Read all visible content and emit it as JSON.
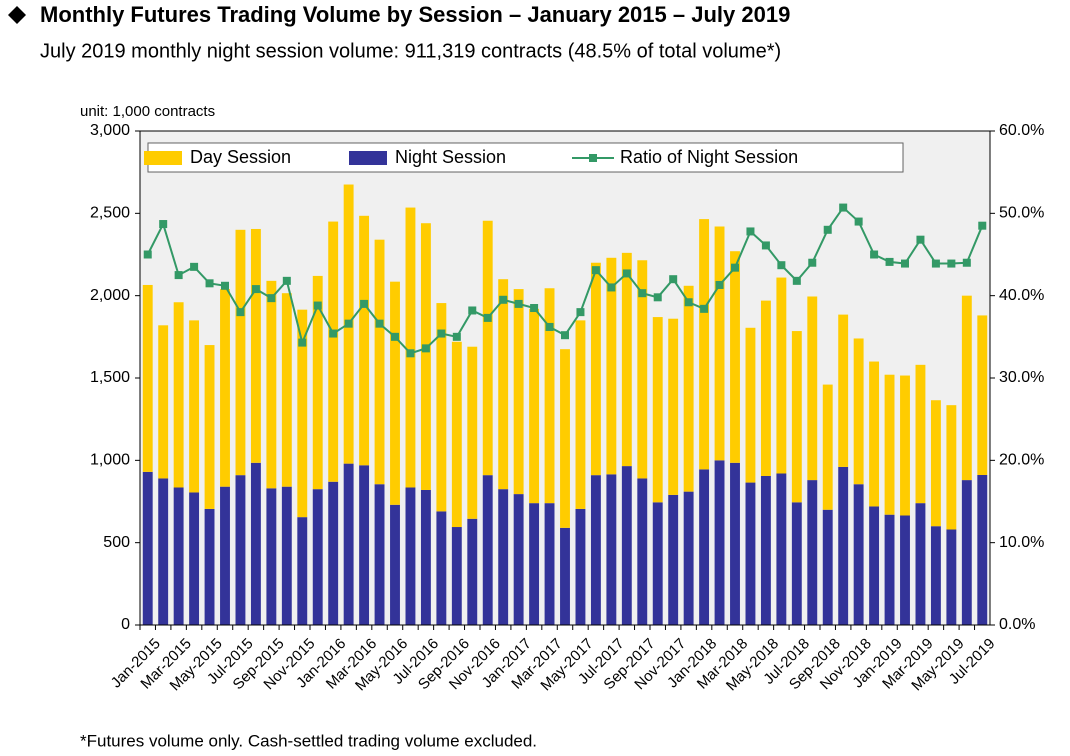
{
  "chart_data": {
    "type": "bar",
    "stacked": true,
    "title": "Monthly Futures Trading Volume by Session – January 2015 – July 2019",
    "subtitle": "July 2019 monthly night session volume: 911,319 contracts (48.5% of total volume*)",
    "y_unit_label": "unit: 1,000 contracts",
    "footnote": "*Futures volume only. Cash-settled trading volume excluded.",
    "categories": [
      "Jan-2015",
      null,
      "Mar-2015",
      null,
      "May-2015",
      null,
      "Jul-2015",
      null,
      "Sep-2015",
      null,
      "Nov-2015",
      null,
      "Jan-2016",
      null,
      "Mar-2016",
      null,
      "May-2016",
      null,
      "Jul-2016",
      null,
      "Sep-2016",
      null,
      "Nov-2016",
      null,
      "Jan-2017",
      null,
      "Mar-2017",
      null,
      "May-2017",
      null,
      "Jul-2017",
      null,
      "Sep-2017",
      null,
      "Nov-2017",
      null,
      "Jan-2018",
      null,
      "Mar-2018",
      null,
      "May-2018",
      null,
      "Jul-2018",
      null,
      "Sep-2018",
      null,
      "Nov-2018",
      null,
      "Jan-2019",
      null,
      "Mar-2019",
      null,
      "May-2019",
      null,
      "Jul-2019"
    ],
    "series": [
      {
        "name": "Day Session",
        "type": "bar",
        "color": "#ffcc00",
        "values": [
          1135,
          930,
          1125,
          1045,
          995,
          1200,
          1490,
          1420,
          1260,
          1175,
          1260,
          1295,
          1580,
          1695,
          1515,
          1485,
          1355,
          1700,
          1620,
          1265,
          1125,
          1045,
          1545,
          1275,
          1245,
          1180,
          1305,
          1085,
          1145,
          1290,
          1315,
          1295,
          1325,
          1125,
          1070,
          1250,
          1520,
          1420,
          1285,
          940,
          1065,
          1190,
          1040,
          1115,
          760,
          925,
          885,
          880,
          850,
          850,
          840,
          765,
          755,
          1120,
          969
        ]
      },
      {
        "name": "Night Session",
        "type": "bar",
        "color": "#333399",
        "values": [
          930,
          890,
          835,
          805,
          705,
          840,
          910,
          985,
          830,
          840,
          655,
          825,
          870,
          980,
          970,
          855,
          730,
          835,
          820,
          690,
          595,
          645,
          910,
          825,
          795,
          740,
          740,
          590,
          705,
          910,
          915,
          965,
          890,
          745,
          790,
          810,
          945,
          1000,
          985,
          865,
          905,
          920,
          745,
          880,
          700,
          960,
          855,
          720,
          670,
          665,
          740,
          600,
          580,
          880,
          911
        ]
      },
      {
        "name": "Ratio of Night Session",
        "type": "line",
        "axis": "y2",
        "color": "#339966",
        "values": [
          45.0,
          48.7,
          42.5,
          43.5,
          41.5,
          41.2,
          38.0,
          40.8,
          39.7,
          41.8,
          34.3,
          38.8,
          35.4,
          36.6,
          39.0,
          36.6,
          35.0,
          33.0,
          33.6,
          35.4,
          35.0,
          38.2,
          37.3,
          39.5,
          39.0,
          38.5,
          36.2,
          35.2,
          38.0,
          43.1,
          41.0,
          42.7,
          40.3,
          39.8,
          42.0,
          39.2,
          38.4,
          41.3,
          43.4,
          47.8,
          46.1,
          43.7,
          41.8,
          44.0,
          48.0,
          50.7,
          49.0,
          45.0,
          44.1,
          43.9,
          46.8,
          43.9,
          43.9,
          44.0,
          48.5
        ]
      }
    ],
    "ylim": [
      0,
      3000
    ],
    "yticks": [
      0,
      500,
      {
        "value": 1000,
        "label": "1,000"
      },
      {
        "value": 1500,
        "label": "1,500"
      },
      {
        "value": 2000,
        "label": "2,000"
      },
      {
        "value": 2500,
        "label": "2,500"
      },
      {
        "value": 3000,
        "label": "3,000"
      }
    ],
    "y2lim": [
      0,
      60
    ],
    "y2ticks": [
      {
        "value": 0,
        "label": "0.0%"
      },
      {
        "value": 10,
        "label": "10.0%"
      },
      {
        "value": 20,
        "label": "20.0%"
      },
      {
        "value": 30,
        "label": "30.0%"
      },
      {
        "value": 40,
        "label": "40.0%"
      },
      {
        "value": 50,
        "label": "50.0%"
      },
      {
        "value": 60,
        "label": "60.0%"
      }
    ],
    "legend": "top",
    "plot_background": "#f0f0f0"
  }
}
